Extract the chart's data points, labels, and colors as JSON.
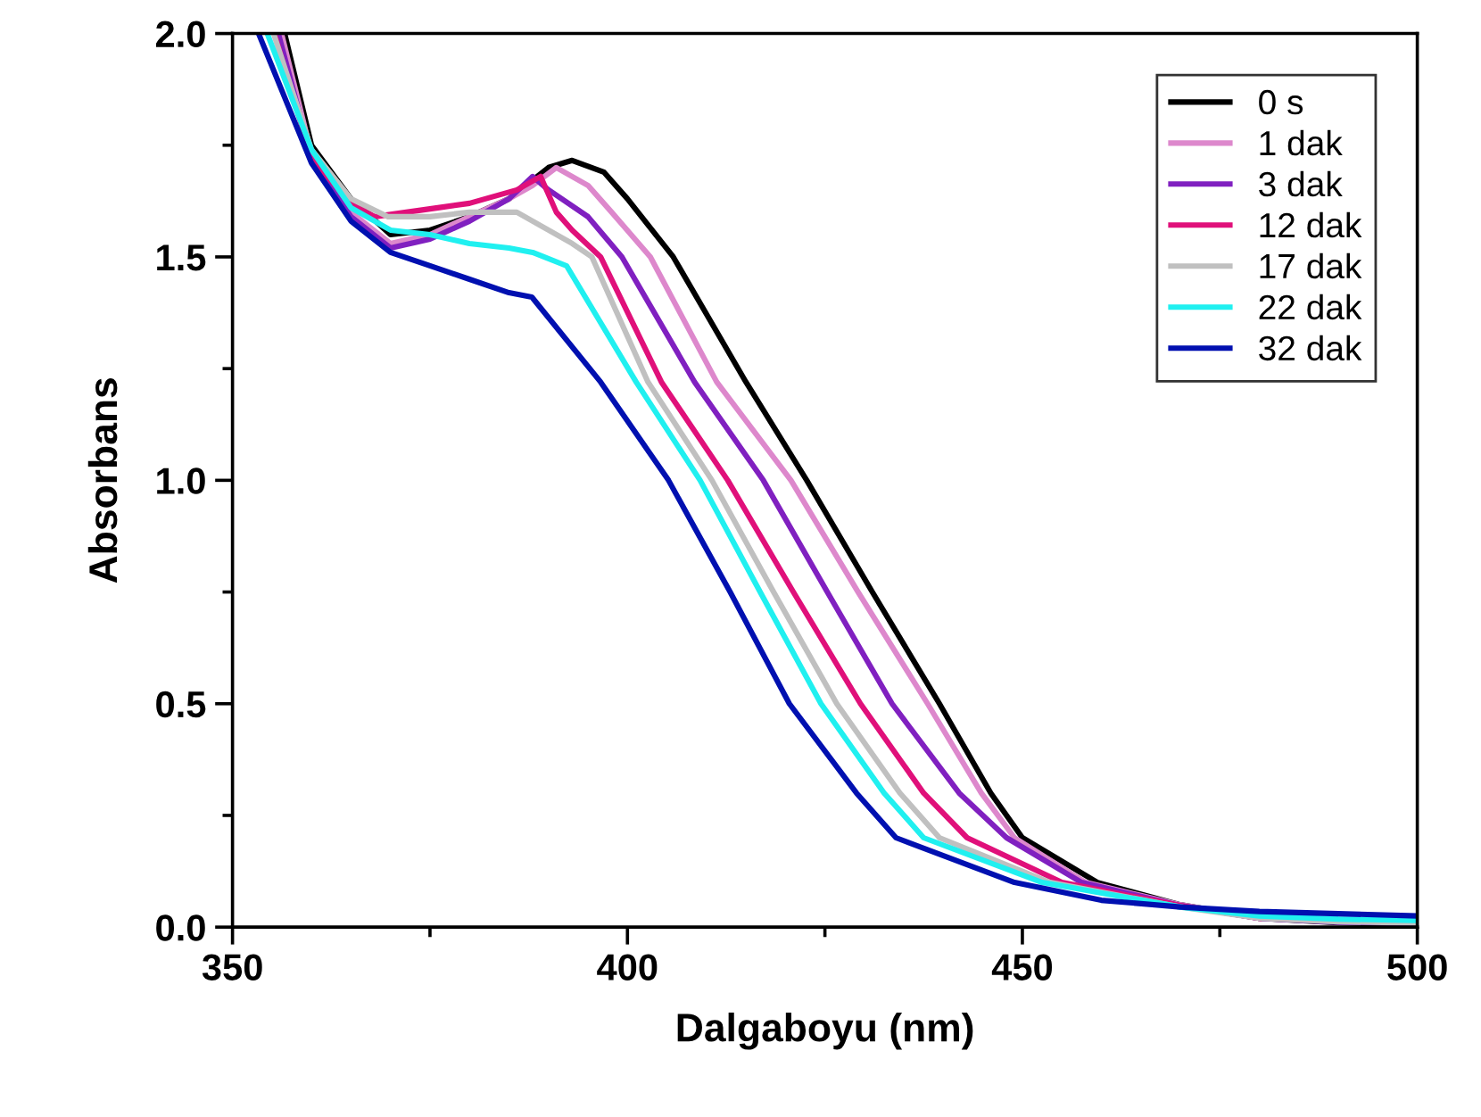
{
  "chart_data": {
    "type": "line",
    "xlabel": "Dalgaboyu (nm)",
    "ylabel": "Absorbans",
    "xlim": [
      350,
      500
    ],
    "ylim": [
      0.0,
      2.0
    ],
    "xticks": [
      350,
      {
        "value": 375,
        "label": null
      },
      400,
      {
        "value": 425,
        "label": null
      },
      450,
      {
        "value": 475,
        "label": null
      },
      500
    ],
    "yticks": [
      {
        "value": 0,
        "label": "0.0"
      },
      {
        "value": 0.25,
        "label": null
      },
      {
        "value": 0.5,
        "label": "0.5"
      },
      {
        "value": 0.75,
        "label": null
      },
      {
        "value": 1,
        "label": "1.0"
      },
      {
        "value": 1.25,
        "label": null
      },
      {
        "value": 1.5,
        "label": "1.5"
      },
      {
        "value": 1.75,
        "label": null
      },
      {
        "value": 2,
        "label": "2.0"
      }
    ],
    "grid": false,
    "legend": "top right",
    "marker": "none",
    "line_style": "solid",
    "series": [
      {
        "name": "0 s",
        "color": "#000000",
        "x": [
          356.6,
          360,
          365,
          370,
          375,
          380,
          385,
          390,
          393,
          397,
          400,
          405.8,
          415,
          422.7,
          431,
          439.5,
          446,
          450,
          459.5,
          470,
          480,
          490,
          500
        ],
        "values": [
          2.0,
          1.75,
          1.63,
          1.55,
          1.56,
          1.59,
          1.63,
          1.7,
          1.716,
          1.69,
          1.63,
          1.5,
          1.22,
          1.0,
          0.75,
          0.5,
          0.3,
          0.2,
          0.1,
          0.05,
          0.02,
          0.01,
          0.005
        ]
      },
      {
        "name": "1 dak",
        "color": "#dd88cc",
        "x": [
          356.2,
          360,
          365,
          370,
          375,
          380,
          385,
          388,
          391,
          395,
          398,
          402.9,
          411.3,
          420.7,
          429.2,
          438,
          444.8,
          449,
          458,
          470,
          480,
          490,
          500
        ],
        "values": [
          2.0,
          1.73,
          1.6,
          1.53,
          1.55,
          1.59,
          1.63,
          1.66,
          1.7,
          1.66,
          1.6,
          1.5,
          1.22,
          1.0,
          0.75,
          0.5,
          0.3,
          0.2,
          0.1,
          0.05,
          0.02,
          0.012,
          0.008
        ]
      },
      {
        "name": "3 dak",
        "color": "#8020c0",
        "x": [
          355.8,
          360,
          365,
          370,
          375,
          380,
          385,
          388,
          390,
          395,
          399.3,
          408.5,
          417.2,
          425.3,
          433.5,
          442,
          448,
          457.5,
          470,
          480,
          490,
          500
        ],
        "values": [
          2.0,
          1.72,
          1.59,
          1.52,
          1.54,
          1.58,
          1.63,
          1.68,
          1.65,
          1.59,
          1.5,
          1.22,
          1.0,
          0.75,
          0.5,
          0.3,
          0.2,
          0.1,
          0.048,
          0.02,
          0.011,
          0.008
        ]
      },
      {
        "name": "12 dak",
        "color": "#e0107a",
        "x": [
          355.3,
          360,
          365,
          368,
          372,
          376,
          380,
          386,
          389,
          391,
          393,
          396.6,
          404.3,
          412.7,
          421,
          429.5,
          437.5,
          443,
          455,
          470,
          480
        ],
        "values": [
          2.0,
          1.72,
          1.62,
          1.59,
          1.6,
          1.61,
          1.62,
          1.65,
          1.68,
          1.6,
          1.56,
          1.5,
          1.22,
          1.0,
          0.75,
          0.5,
          0.3,
          0.2,
          0.1,
          0.048,
          0.02
        ]
      },
      {
        "name": "17 dak",
        "color": "#c0c0c0",
        "x": [
          355.2,
          360,
          365,
          369.7,
          375,
          380,
          386,
          388,
          390,
          393,
          395.5,
          402.6,
          410.7,
          418.5,
          426.5,
          434.5,
          439.5,
          453.5,
          470,
          480,
          490,
          500
        ],
        "values": [
          2.0,
          1.74,
          1.63,
          1.59,
          1.59,
          1.6,
          1.6,
          1.58,
          1.56,
          1.53,
          1.5,
          1.22,
          1.0,
          0.75,
          0.5,
          0.3,
          0.2,
          0.1,
          0.045,
          0.02,
          0.012,
          0.009
        ]
      },
      {
        "name": "22 dak",
        "color": "#20f0f0",
        "x": [
          354.4,
          360,
          365,
          370,
          375,
          380,
          385,
          388,
          392.3,
          401.1,
          409.2,
          416.8,
          424.5,
          432.5,
          437.5,
          452.5,
          470,
          480,
          490,
          500
        ],
        "values": [
          2.0,
          1.74,
          1.61,
          1.56,
          1.55,
          1.53,
          1.52,
          1.51,
          1.48,
          1.22,
          1.0,
          0.75,
          0.5,
          0.3,
          0.2,
          0.1,
          0.045,
          0.025,
          0.018,
          0.015
        ]
      },
      {
        "name": "32 dak",
        "color": "#0010b0",
        "x": [
          353.3,
          360,
          365,
          370,
          375,
          380,
          385,
          387.9,
          396.6,
          405.2,
          413,
          420.5,
          429,
          434,
          449,
          460,
          470,
          480,
          490,
          500
        ],
        "values": [
          2.0,
          1.71,
          1.58,
          1.51,
          1.48,
          1.45,
          1.42,
          1.41,
          1.22,
          1.0,
          0.75,
          0.5,
          0.3,
          0.2,
          0.1,
          0.06,
          0.045,
          0.035,
          0.03,
          0.025
        ]
      }
    ]
  }
}
